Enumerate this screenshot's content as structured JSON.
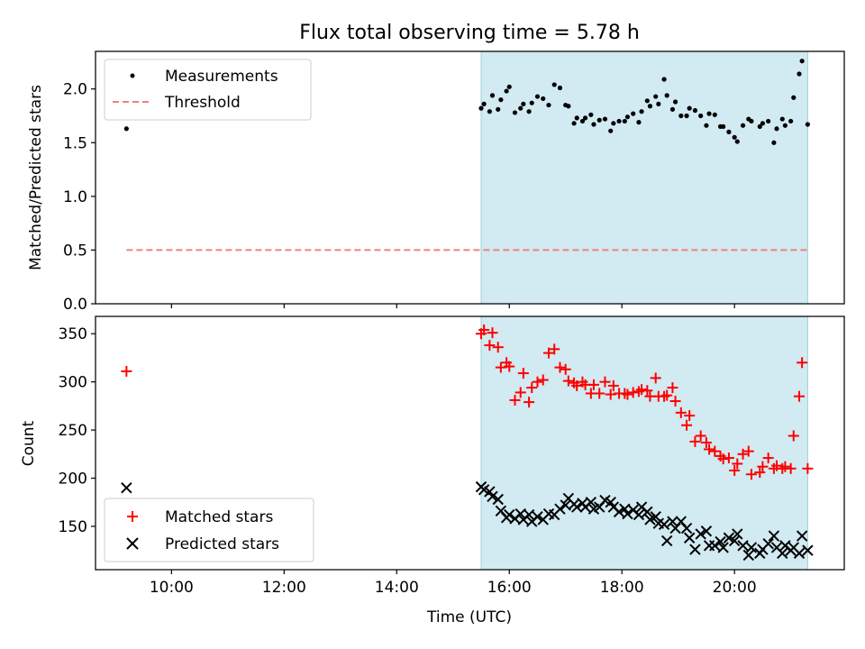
{
  "chart_data": [
    {
      "type": "scatter",
      "title": "Flux total observing time = 5.78 h",
      "ylabel": "Matched/Predicted stars",
      "xlabel": "",
      "ylim": [
        0,
        2.35
      ],
      "y_ticks": [
        "0.0",
        "0.5",
        "1.0",
        "1.5",
        "2.0"
      ],
      "x_range_hours": [
        8.65,
        21.95
      ],
      "shaded_span": [
        15.5,
        21.3
      ],
      "shade_color": "#add8e6",
      "legend_position": "upper-left",
      "series": [
        {
          "name": "Measurements",
          "marker": "dot",
          "color": "#000000",
          "x": [
            9.2,
            15.5,
            15.55,
            15.65,
            15.7,
            15.8,
            15.85,
            15.95,
            16.0,
            16.1,
            16.2,
            16.25,
            16.35,
            16.4,
            16.5,
            16.6,
            16.7,
            16.8,
            16.9,
            17.0,
            17.05,
            17.15,
            17.2,
            17.3,
            17.35,
            17.45,
            17.5,
            17.6,
            17.7,
            17.8,
            17.85,
            17.95,
            18.05,
            18.1,
            18.2,
            18.3,
            18.35,
            18.45,
            18.5,
            18.6,
            18.65,
            18.75,
            18.8,
            18.9,
            18.95,
            19.05,
            19.15,
            19.2,
            19.3,
            19.4,
            19.5,
            19.55,
            19.65,
            19.75,
            19.8,
            19.9,
            20.0,
            20.05,
            20.15,
            20.25,
            20.3,
            20.45,
            20.5,
            20.6,
            20.7,
            20.75,
            20.85,
            20.9,
            21.0,
            21.05,
            21.15,
            21.2,
            21.3
          ],
          "y": [
            1.63,
            1.82,
            1.86,
            1.79,
            1.94,
            1.81,
            1.9,
            1.98,
            2.02,
            1.78,
            1.82,
            1.86,
            1.79,
            1.87,
            1.93,
            1.91,
            1.85,
            2.04,
            2.01,
            1.85,
            1.84,
            1.68,
            1.73,
            1.7,
            1.73,
            1.76,
            1.67,
            1.71,
            1.72,
            1.61,
            1.68,
            1.7,
            1.7,
            1.74,
            1.77,
            1.69,
            1.79,
            1.89,
            1.84,
            1.93,
            1.86,
            2.09,
            1.94,
            1.81,
            1.88,
            1.75,
            1.75,
            1.82,
            1.8,
            1.75,
            1.66,
            1.77,
            1.76,
            1.65,
            1.65,
            1.6,
            1.55,
            1.51,
            1.66,
            1.72,
            1.7,
            1.65,
            1.68,
            1.7,
            1.5,
            1.63,
            1.72,
            1.66,
            1.7,
            1.92,
            2.14,
            2.26,
            1.67
          ]
        },
        {
          "name": "Threshold",
          "style": "dashed",
          "color": "#f08080",
          "x": [
            9.2,
            21.3
          ],
          "y": [
            0.5,
            0.5
          ]
        }
      ]
    },
    {
      "type": "scatter",
      "title": "",
      "ylabel": "Count",
      "xlabel": "Time (UTC)",
      "ylim": [
        105,
        368
      ],
      "y_ticks": [
        "150",
        "200",
        "250",
        "300",
        "350"
      ],
      "x_range_hours": [
        8.65,
        21.95
      ],
      "x_tick_labels": [
        "10:00",
        "12:00",
        "14:00",
        "16:00",
        "18:00",
        "20:00"
      ],
      "shaded_span": [
        15.5,
        21.3
      ],
      "shade_color": "#add8e6",
      "legend_position": "lower-left",
      "series": [
        {
          "name": "Matched stars",
          "marker": "plus",
          "color": "#ff0000",
          "x": [
            9.2,
            15.5,
            15.55,
            15.65,
            15.7,
            15.8,
            15.85,
            15.95,
            16.0,
            16.1,
            16.2,
            16.25,
            16.35,
            16.4,
            16.5,
            16.6,
            16.7,
            16.8,
            16.9,
            17.0,
            17.05,
            17.15,
            17.2,
            17.3,
            17.35,
            17.45,
            17.5,
            17.6,
            17.7,
            17.8,
            17.85,
            17.95,
            18.05,
            18.1,
            18.2,
            18.3,
            18.35,
            18.45,
            18.5,
            18.6,
            18.65,
            18.75,
            18.8,
            18.9,
            18.95,
            19.05,
            19.15,
            19.2,
            19.3,
            19.4,
            19.5,
            19.55,
            19.65,
            19.75,
            19.8,
            19.9,
            20.0,
            20.05,
            20.15,
            20.25,
            20.3,
            20.45,
            20.5,
            20.6,
            20.7,
            20.75,
            20.85,
            20.9,
            21.0,
            21.05,
            21.15,
            21.2,
            21.3
          ],
          "y": [
            311,
            350,
            354,
            338,
            351,
            336,
            315,
            320,
            316,
            281,
            289,
            309,
            279,
            294,
            300,
            302,
            330,
            334,
            315,
            313,
            301,
            299,
            296,
            300,
            297,
            288,
            297,
            288,
            300,
            287,
            296,
            288,
            288,
            287,
            289,
            290,
            292,
            291,
            285,
            304,
            285,
            285,
            286,
            294,
            280,
            268,
            255,
            265,
            238,
            244,
            237,
            230,
            228,
            223,
            220,
            221,
            208,
            215,
            225,
            228,
            204,
            206,
            212,
            221,
            210,
            213,
            210,
            212,
            210,
            244,
            285,
            320,
            210
          ]
        },
        {
          "name": "Predicted stars",
          "marker": "x",
          "color": "#000000",
          "x": [
            9.2,
            15.5,
            15.55,
            15.65,
            15.7,
            15.8,
            15.85,
            15.95,
            16.0,
            16.1,
            16.2,
            16.25,
            16.35,
            16.4,
            16.5,
            16.6,
            16.7,
            16.8,
            16.9,
            17.0,
            17.05,
            17.15,
            17.2,
            17.3,
            17.35,
            17.45,
            17.5,
            17.6,
            17.7,
            17.8,
            17.85,
            17.95,
            18.05,
            18.1,
            18.2,
            18.3,
            18.35,
            18.45,
            18.5,
            18.6,
            18.65,
            18.75,
            18.8,
            18.9,
            18.95,
            19.05,
            19.15,
            19.2,
            19.3,
            19.4,
            19.5,
            19.55,
            19.65,
            19.75,
            19.8,
            19.9,
            20.0,
            20.05,
            20.15,
            20.25,
            20.3,
            20.45,
            20.5,
            20.6,
            20.7,
            20.75,
            20.85,
            20.9,
            21.0,
            21.05,
            21.15,
            21.2,
            21.3
          ],
          "y": [
            190,
            191,
            188,
            186,
            181,
            178,
            166,
            159,
            162,
            158,
            163,
            157,
            162,
            155,
            160,
            157,
            163,
            162,
            168,
            172,
            179,
            173,
            170,
            174,
            170,
            175,
            168,
            170,
            177,
            175,
            170,
            165,
            168,
            163,
            167,
            162,
            170,
            165,
            157,
            160,
            153,
            152,
            135,
            155,
            148,
            155,
            148,
            138,
            126,
            142,
            145,
            130,
            130,
            134,
            128,
            138,
            135,
            142,
            130,
            120,
            128,
            122,
            126,
            132,
            140,
            128,
            122,
            130,
            125,
            128,
            122,
            140,
            125
          ]
        }
      ]
    }
  ]
}
